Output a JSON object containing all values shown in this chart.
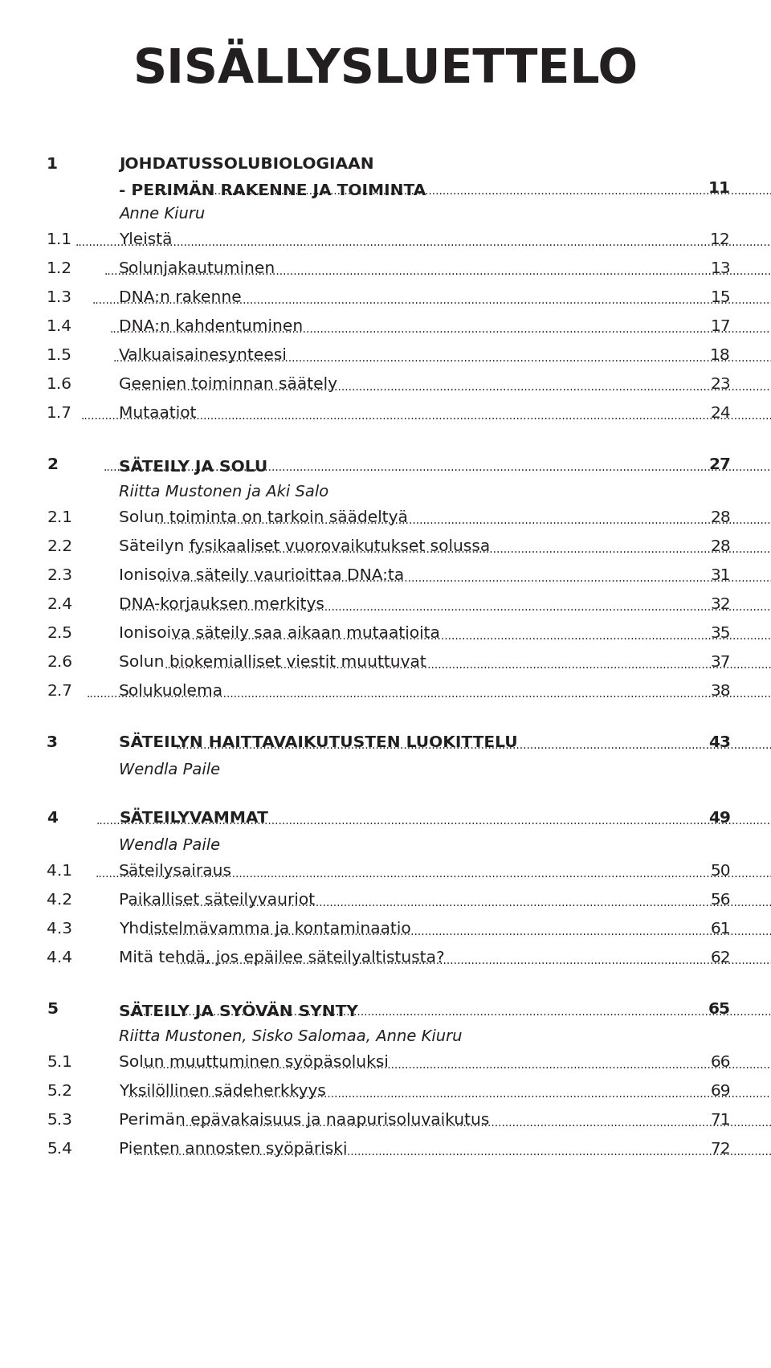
{
  "title": "SISÄLLYSLUETTELO",
  "bg_color": "#ffffff",
  "text_color": "#231f20",
  "entries": [
    {
      "num": "1",
      "level": "chapter",
      "text": "JOHDATUSSOLUBIOLOGIAAN",
      "text2": "- PERIMÄN RAKENNE JA TOIMINTA",
      "page": "11"
    },
    {
      "num": "",
      "level": "author",
      "text": "Anne Kiuru",
      "text2": "",
      "page": ""
    },
    {
      "num": "1.1",
      "level": "sub",
      "text": "Yleistä",
      "text2": "",
      "page": "12"
    },
    {
      "num": "1.2",
      "level": "sub",
      "text": "Solunjakautuminen",
      "text2": "",
      "page": "13"
    },
    {
      "num": "1.3",
      "level": "sub",
      "text": "DNA:n rakenne",
      "text2": "",
      "page": "15"
    },
    {
      "num": "1.4",
      "level": "sub",
      "text": "DNA:n kahdentuminen",
      "text2": "",
      "page": "17"
    },
    {
      "num": "1.5",
      "level": "sub",
      "text": "Valkuaisainesynteesi",
      "text2": "",
      "page": "18"
    },
    {
      "num": "1.6",
      "level": "sub",
      "text": "Geenien toiminnan säätely",
      "text2": "",
      "page": "23"
    },
    {
      "num": "1.7",
      "level": "sub",
      "text": "Mutaatiot",
      "text2": "",
      "page": "24"
    },
    {
      "num": "2",
      "level": "chapter",
      "text": "SÄTEILY JA SOLU",
      "text2": "",
      "page": "27"
    },
    {
      "num": "",
      "level": "author",
      "text": "Riitta Mustonen ja Aki Salo",
      "text2": "",
      "page": ""
    },
    {
      "num": "2.1",
      "level": "sub",
      "text": "Solun toiminta on tarkoin säädeltyä",
      "text2": "",
      "page": "28"
    },
    {
      "num": "2.2",
      "level": "sub",
      "text": "Säteilyn fysikaaliset vuorovaikutukset solussa",
      "text2": "",
      "page": "28"
    },
    {
      "num": "2.3",
      "level": "sub",
      "text": "Ionisoiva säteily vaurioittaa DNA:ta",
      "text2": "",
      "page": "31"
    },
    {
      "num": "2.4",
      "level": "sub",
      "text": "DNA-korjauksen merkitys",
      "text2": "",
      "page": "32"
    },
    {
      "num": "2.5",
      "level": "sub",
      "text": "Ionisoiva säteily saa aikaan mutaatioita",
      "text2": "",
      "page": "35"
    },
    {
      "num": "2.6",
      "level": "sub",
      "text": "Solun biokemialliset viestit muuttuvat",
      "text2": "",
      "page": "37"
    },
    {
      "num": "2.7",
      "level": "sub",
      "text": "Solukuolema",
      "text2": "",
      "page": "38"
    },
    {
      "num": "3",
      "level": "chapter",
      "text": "SÄTEILYN HAITTAVAIKUTUSTEN LUOKITTELU",
      "text2": "",
      "page": "43"
    },
    {
      "num": "",
      "level": "author",
      "text": "Wendla Paile",
      "text2": "",
      "page": ""
    },
    {
      "num": "4",
      "level": "chapter",
      "text": "SÄTEILYVAMMAT",
      "text2": "",
      "page": "49"
    },
    {
      "num": "",
      "level": "author",
      "text": "Wendla Paile",
      "text2": "",
      "page": ""
    },
    {
      "num": "4.1",
      "level": "sub",
      "text": "Säteilysairaus",
      "text2": "",
      "page": "50"
    },
    {
      "num": "4.2",
      "level": "sub",
      "text": "Paikalliset säteilyvauriot",
      "text2": "",
      "page": "56"
    },
    {
      "num": "4.3",
      "level": "sub",
      "text": "Yhdistelmävamma ja kontaminaatio",
      "text2": "",
      "page": "61"
    },
    {
      "num": "4.4",
      "level": "sub",
      "text": "Mitä tehdä, jos epäilee säteilyaltistusta?",
      "text2": "",
      "page": "62"
    },
    {
      "num": "5",
      "level": "chapter",
      "text": "SÄTEILY JA SYÖVÄN SYNTY",
      "text2": "",
      "page": "65"
    },
    {
      "num": "",
      "level": "author",
      "text": "Riitta Mustonen, Sisko Salomaa, Anne Kiuru",
      "text2": "",
      "page": ""
    },
    {
      "num": "5.1",
      "level": "sub",
      "text": "Solun muuttuminen syöpäsoluksi",
      "text2": "",
      "page": "66"
    },
    {
      "num": "5.2",
      "level": "sub",
      "text": "Yksilöllinen sädeherkkyys",
      "text2": "",
      "page": "69"
    },
    {
      "num": "5.3",
      "level": "sub",
      "text": "Perimän epävakaisuus ja naapurisoluvaikutus",
      "text2": "",
      "page": "71"
    },
    {
      "num": "5.4",
      "level": "sub",
      "text": "Pienten annosten syöpäriski",
      "text2": "",
      "page": "72"
    }
  ]
}
